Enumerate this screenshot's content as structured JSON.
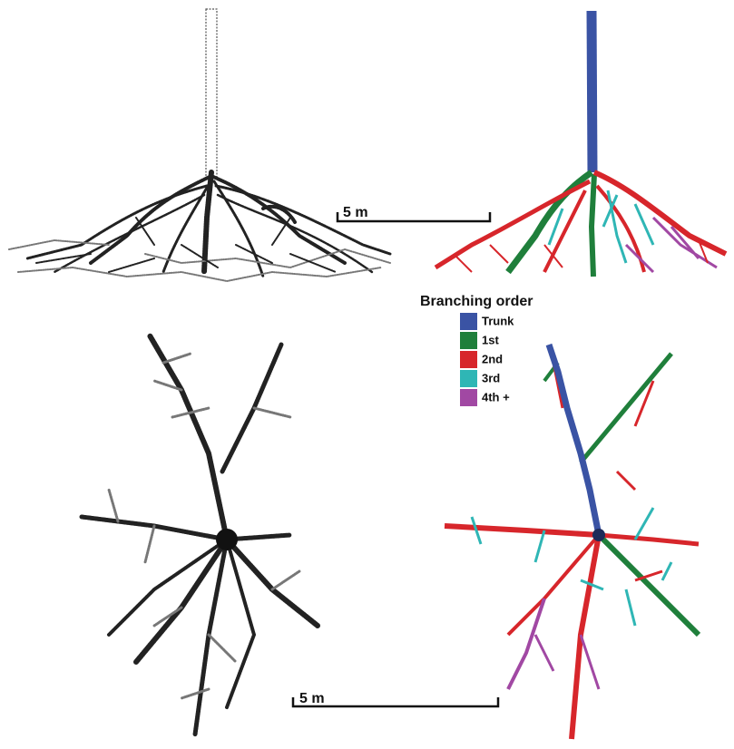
{
  "scale_bars": [
    {
      "label": "5 m"
    },
    {
      "label": "5 m"
    }
  ],
  "legend": {
    "title": "Branching order",
    "items": [
      {
        "label": "Trunk",
        "color": "#3a53a4"
      },
      {
        "label": "1st",
        "color": "#1f7f3b"
      },
      {
        "label": "2nd",
        "color": "#d7262b"
      },
      {
        "label": "3rd",
        "color": "#2fb6b5"
      },
      {
        "label": "4th +",
        "color": "#a148a3"
      }
    ]
  }
}
